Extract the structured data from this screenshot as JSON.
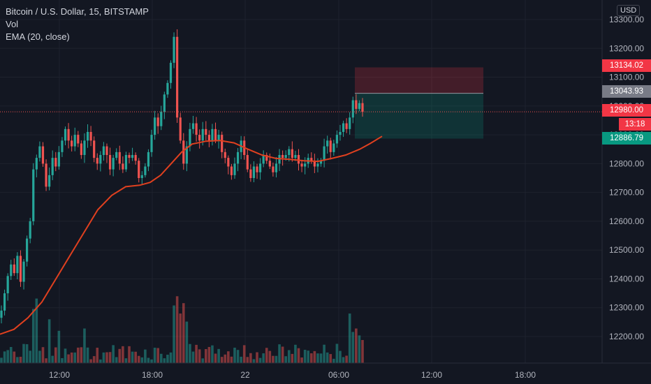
{
  "legend": {
    "symbol_line": "Bitcoin / U.S. Dollar, 15, BITSTAMP",
    "volume": "Vol",
    "ema": "EMA (20, close)"
  },
  "currency": "USD",
  "price_tags": {
    "stop_loss": "13134.02",
    "entry": "13043.93",
    "last": "12980.00",
    "countdown": "13:18",
    "target": "12886.79"
  },
  "colors": {
    "background": "#131722",
    "up": "#26a69a",
    "down": "#ef5350",
    "ema": "#e0401f",
    "grid": "#1e222d",
    "stop_zone": "rgba(242,54,69,0.22)",
    "target_zone": "rgba(8,153,129,0.22)",
    "axis_text": "#b2b5be"
  },
  "chart_data": {
    "type": "candlestick",
    "symbol": "Bitcoin / U.S. Dollar",
    "interval": "15",
    "exchange": "BITSTAMP",
    "y_axis": {
      "ticks": [
        "12200.00",
        "12300.00",
        "12400.00",
        "12500.00",
        "12600.00",
        "12700.00",
        "12800.00",
        "12900.00",
        "13000.00",
        "13100.00",
        "13200.00",
        "13300.00"
      ],
      "range": [
        12100,
        13330
      ]
    },
    "x_axis": {
      "ticks": [
        "12:00",
        "18:00",
        "22",
        "06:00",
        "12:00",
        "18:00"
      ]
    },
    "candles_close": [
      12290,
      12350,
      12410,
      12450,
      12420,
      12480,
      12390,
      12460,
      12540,
      12600,
      12780,
      12820,
      12860,
      12800,
      12720,
      12760,
      12820,
      12790,
      12840,
      12880,
      12920,
      12880,
      12860,
      12900,
      12870,
      12830,
      12880,
      12910,
      12880,
      12820,
      12800,
      12830,
      12860,
      12830,
      12780,
      12820,
      12840,
      12800,
      12780,
      12830,
      12820,
      12830,
      12810,
      12750,
      12760,
      12790,
      12840,
      12900,
      12960,
      12930,
      12980,
      13040,
      13080,
      13150,
      13240,
      12960,
      12880,
      12800,
      12860,
      12920,
      12940,
      12900,
      12880,
      12920,
      12900,
      12880,
      12920,
      12880,
      12900,
      12840,
      12820,
      12790,
      12760,
      12800,
      12840,
      12880,
      12830,
      12780,
      12750,
      12790,
      12770,
      12800,
      12830,
      12810,
      12790,
      12770,
      12800,
      12830,
      12820,
      12830,
      12850,
      12820,
      12830,
      12800,
      12790,
      12800,
      12820,
      12810,
      12790,
      12800,
      12810,
      12860,
      12880,
      12840,
      12870,
      12900,
      12910,
      12940,
      12920,
      12960,
      13020,
      12990,
      13010,
      12980
    ],
    "ema_20": {
      "start": 12210,
      "end": 12900
    },
    "volume_max_approx": 310,
    "trade_box": {
      "side": "short",
      "entry": 13043.93,
      "stop": 13134.02,
      "target": 12886.79,
      "last_price": 12980.0,
      "countdown": "13:18"
    }
  }
}
